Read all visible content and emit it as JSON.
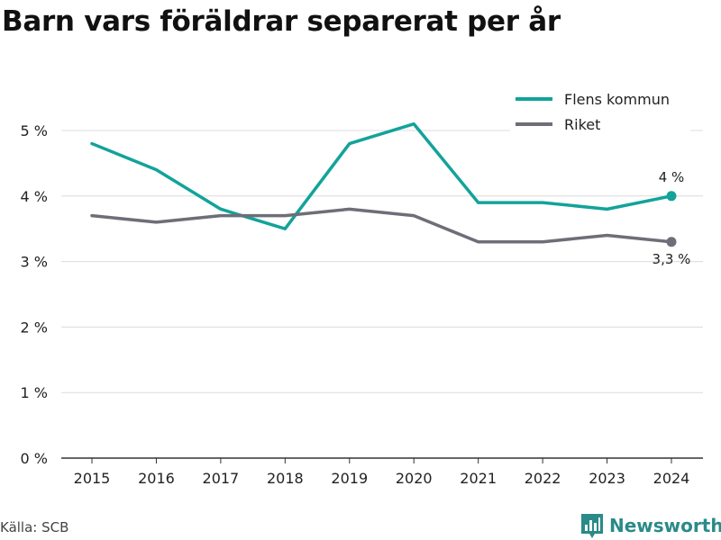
{
  "chart_data": {
    "type": "line",
    "title": "Barn vars föräldrar separerat per år",
    "xlabel": "",
    "ylabel": "",
    "categories": [
      "2015",
      "2016",
      "2017",
      "2018",
      "2019",
      "2020",
      "2021",
      "2022",
      "2023",
      "2024"
    ],
    "y_ticks": [
      "0 %",
      "1 %",
      "2 %",
      "3 %",
      "4 %",
      "5 %"
    ],
    "ylim": [
      0,
      5
    ],
    "grid": true,
    "legend_position": "top-right",
    "series": [
      {
        "name": "Flens kommun",
        "color": "#12a39a",
        "values": [
          4.8,
          4.4,
          3.8,
          3.5,
          4.8,
          5.1,
          3.9,
          3.9,
          3.8,
          4.0
        ],
        "end_label": "4 %"
      },
      {
        "name": "Riket",
        "color": "#6e6e78",
        "values": [
          3.7,
          3.6,
          3.7,
          3.7,
          3.8,
          3.7,
          3.3,
          3.3,
          3.4,
          3.3
        ],
        "end_label": "3,3 %"
      }
    ]
  },
  "footer": {
    "source": "Källa: SCB",
    "brand": "Newsworthy",
    "brand_icon": "bar-chart-logo-icon"
  }
}
